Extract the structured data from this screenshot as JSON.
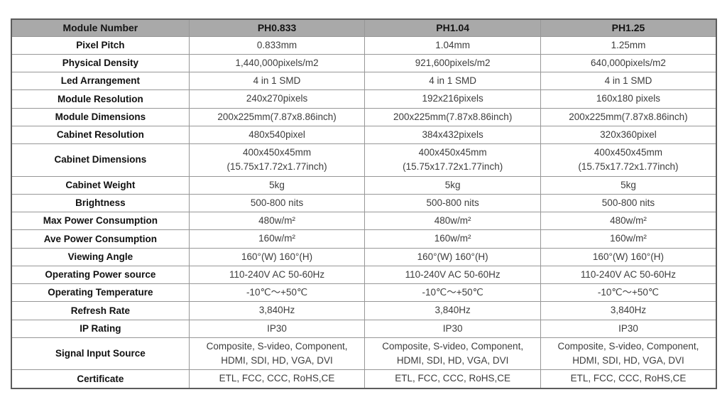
{
  "table": {
    "header": [
      "Module Number",
      "PH0.833",
      "PH1.04",
      "PH1.25"
    ],
    "rows": [
      {
        "label": "Pixel Pitch",
        "values": [
          "0.833mm",
          "1.04mm",
          "1.25mm"
        ]
      },
      {
        "label": "Physical Density",
        "values": [
          "1,440,000pixels/m2",
          "921,600pixels/m2",
          "640,000pixels/m2"
        ]
      },
      {
        "label": "Led Arrangement",
        "values": [
          "4 in 1 SMD",
          "4 in 1 SMD",
          "4 in 1 SMD"
        ]
      },
      {
        "label": "Module Resolution",
        "values": [
          "240x270pixels",
          "192x216pixels",
          "160x180 pixels"
        ]
      },
      {
        "label": "Module Dimensions",
        "values": [
          "200x225mm(7.87x8.86inch)",
          "200x225mm(7.87x8.86inch)",
          "200x225mm(7.87x8.86inch)"
        ]
      },
      {
        "label": "Cabinet Resolution",
        "values": [
          "480x540pixel",
          "384x432pixels",
          "320x360pixel"
        ]
      },
      {
        "label": "Cabinet Dimensions",
        "values": [
          "400x450x45mm\n(15.75x17.72x1.77inch)",
          "400x450x45mm\n(15.75x17.72x1.77inch)",
          "400x450x45mm\n(15.75x17.72x1.77inch)"
        ]
      },
      {
        "label": "Cabinet Weight",
        "values": [
          "5kg",
          "5kg",
          "5kg"
        ]
      },
      {
        "label": "Brightness",
        "values": [
          "500-800 nits",
          "500-800 nits",
          "500-800 nits"
        ]
      },
      {
        "label": "Max Power Consumption",
        "values": [
          "480w/m²",
          "480w/m²",
          "480w/m²"
        ]
      },
      {
        "label": "Ave Power Consumption",
        "values": [
          "160w/m²",
          "160w/m²",
          "160w/m²"
        ]
      },
      {
        "label": "Viewing Angle",
        "values": [
          "160°(W) 160°(H)",
          "160°(W) 160°(H)",
          "160°(W) 160°(H)"
        ]
      },
      {
        "label": "Operating Power source",
        "values": [
          "110-240V AC 50-60Hz",
          "110-240V AC 50-60Hz",
          "110-240V AC 50-60Hz"
        ]
      },
      {
        "label": "Operating Temperature",
        "values": [
          "-10℃～+50℃",
          "-10℃～+50℃",
          "-10℃～+50℃"
        ]
      },
      {
        "label": "Refresh Rate",
        "values": [
          "3,840Hz",
          "3,840Hz",
          "3,840Hz"
        ]
      },
      {
        "label": "IP Rating",
        "values": [
          "IP30",
          "IP30",
          "IP30"
        ]
      },
      {
        "label": "Signal Input Source",
        "values": [
          "Composite, S-video, Component,\nHDMI, SDI, HD, VGA, DVI",
          "Composite, S-video, Component,\nHDMI, SDI, HD, VGA, DVI",
          "Composite, S-video, Component,\nHDMI, SDI, HD, VGA, DVI"
        ]
      },
      {
        "label": "Certificate",
        "values": [
          "ETL, FCC, CCC, RoHS,CE",
          "ETL, FCC, CCC, RoHS,CE",
          "ETL, FCC, CCC, RoHS,CE"
        ]
      }
    ]
  },
  "colors": {
    "header_background": "#a9a9a9",
    "outer_border": "#5c5c5c",
    "inner_border": "#979797",
    "label_text": "#111111",
    "value_text": "#3d3d3d"
  }
}
